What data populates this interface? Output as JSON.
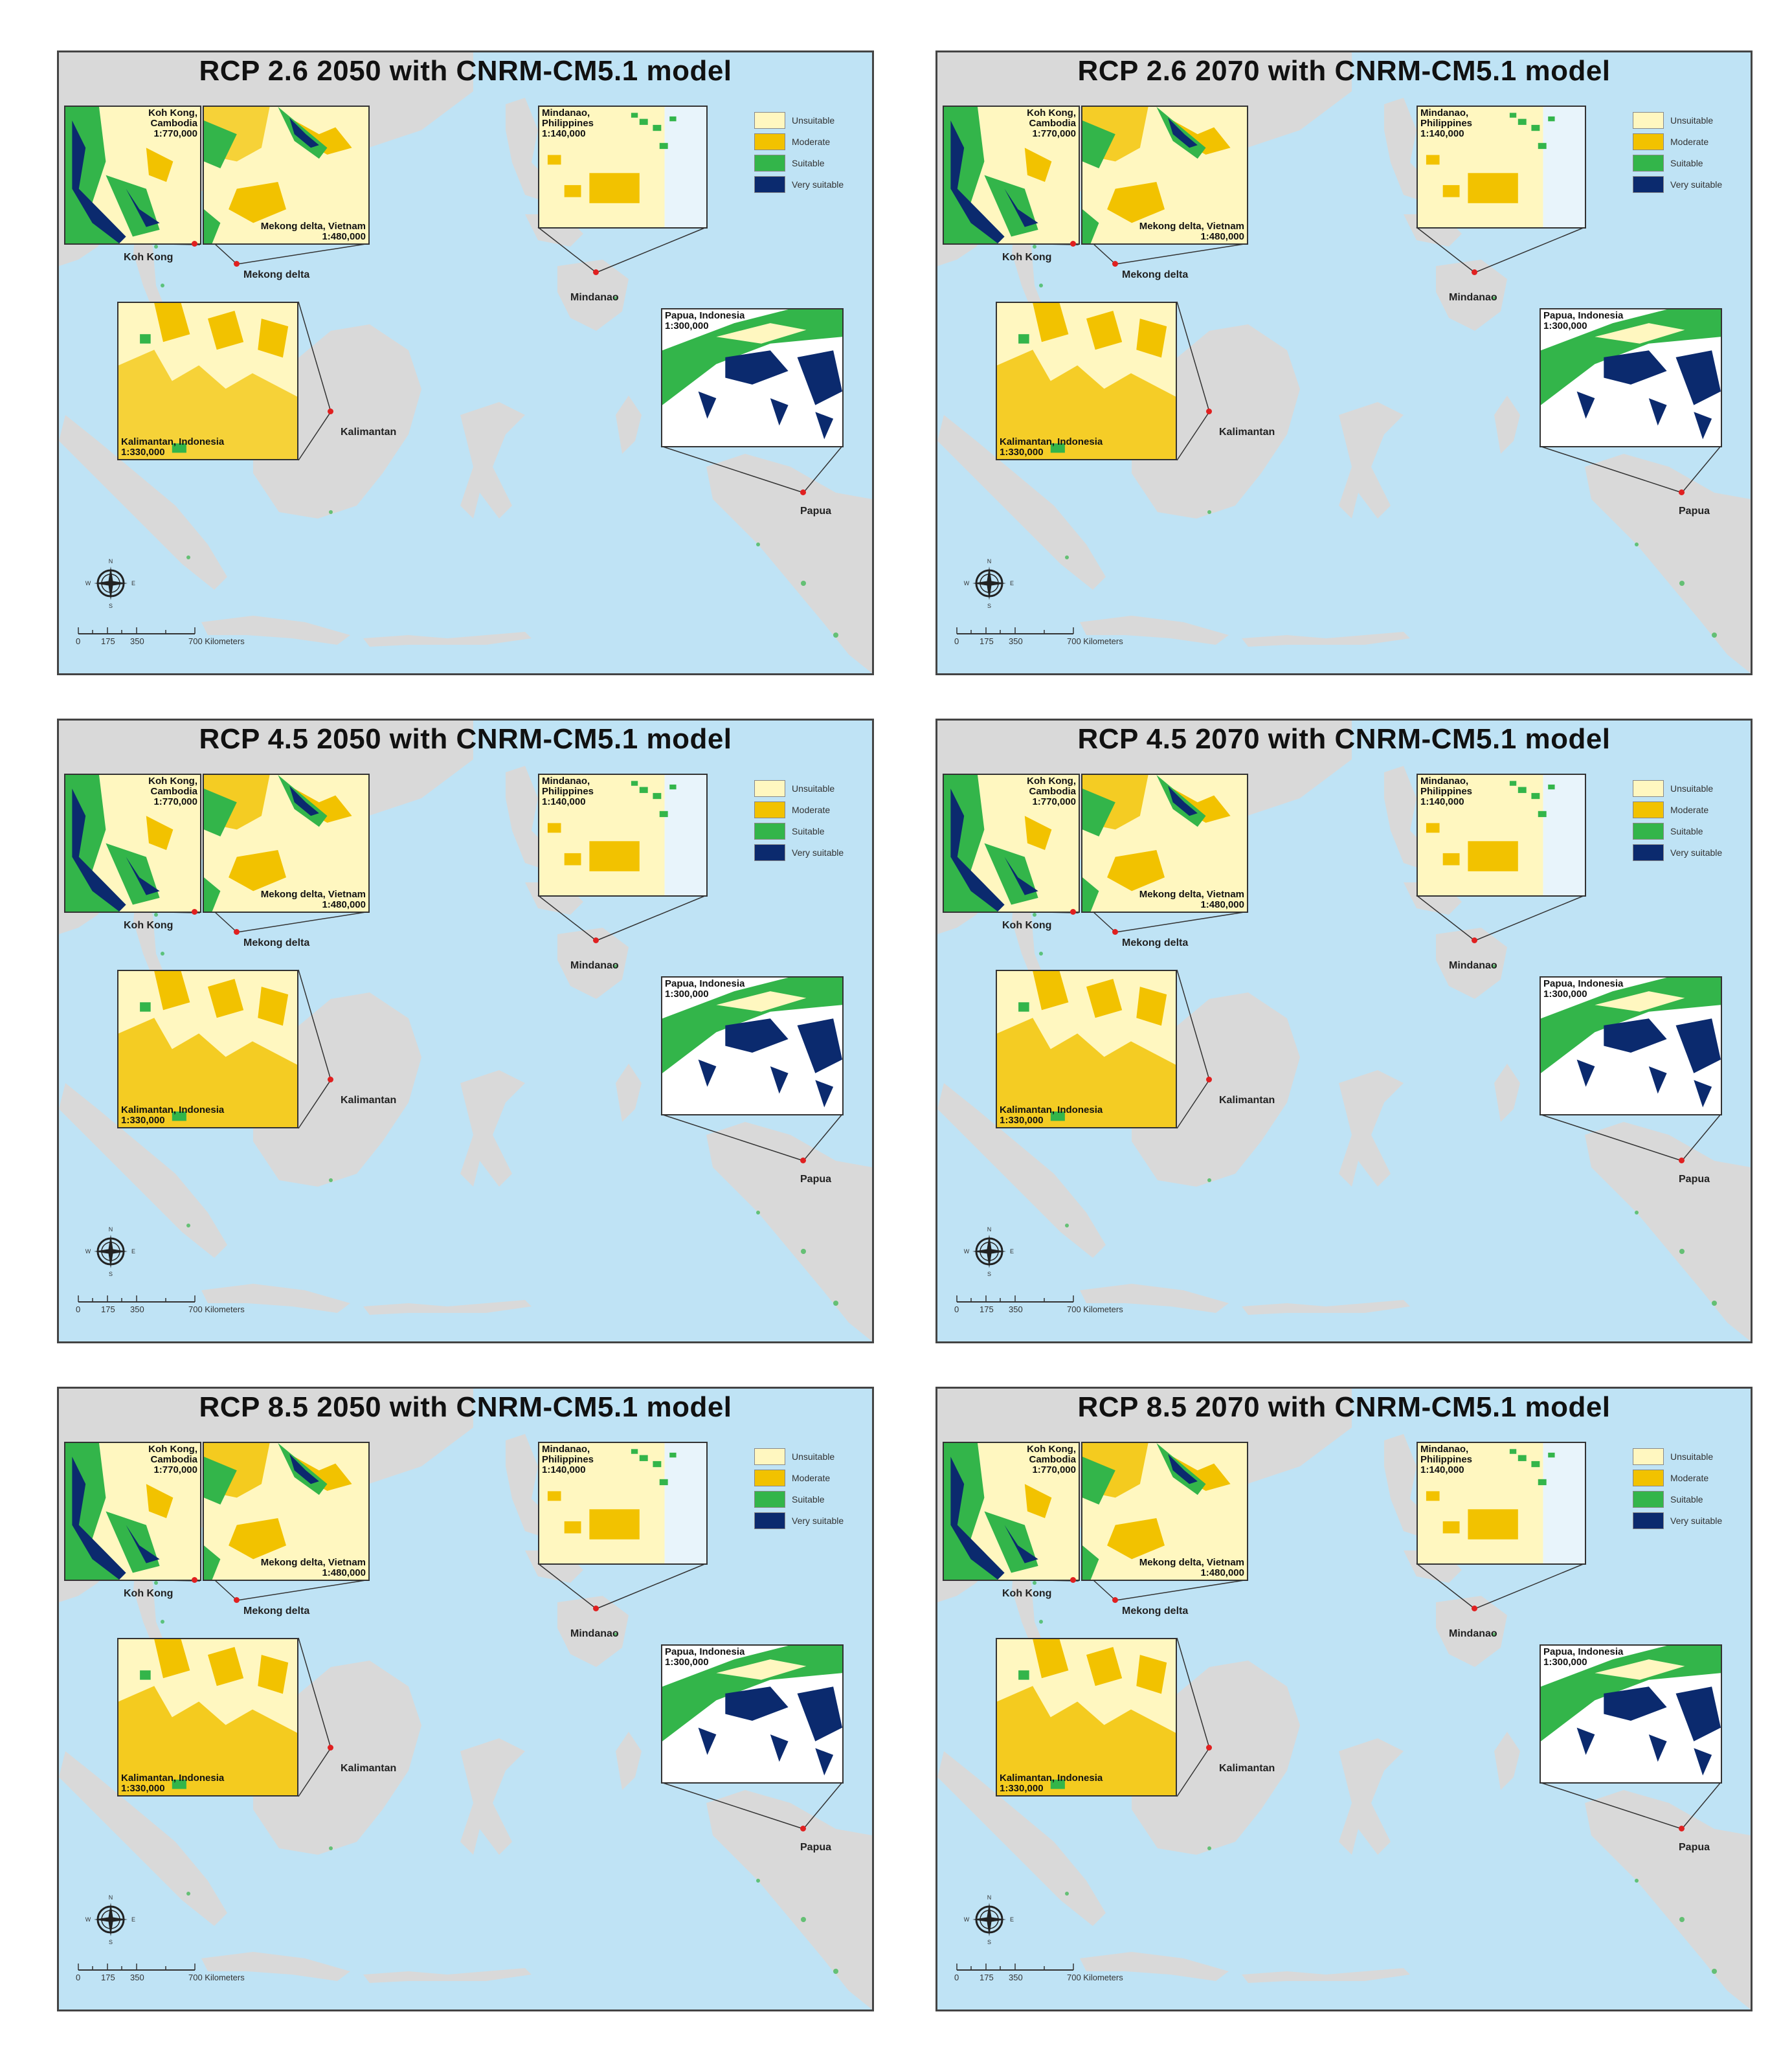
{
  "colors": {
    "sea": "#bfe3f5",
    "land": "#d9d9d9",
    "unsuitable": "#fff7c0",
    "moderate": "#f2c200",
    "suitable": "#33b54a",
    "very_suitable": "#0b2a6e",
    "marker": "#e02020"
  },
  "legend": [
    "Unsuitable",
    "Moderate",
    "Suitable",
    "Very suitable"
  ],
  "insets": {
    "koh_kong": "Koh Kong,\nCambodia\n1:770,000",
    "mekong": "Mekong delta, Vietnam\n1:480,000",
    "mindanao": "Mindanao,\nPhilippines\n1:140,000",
    "kalimantan": "Kalimantan, Indonesia\n1:330,000",
    "papua": "Papua, Indonesia\n1:300,000"
  },
  "places": {
    "koh_kong": "Koh Kong",
    "mekong": "Mekong delta",
    "mindanao": "Mindanao",
    "kalimantan": "Kalimantan",
    "papua": "Papua"
  },
  "scale": {
    "ticks": [
      "0",
      "175",
      "350",
      "700 Kilometers"
    ]
  },
  "compass": [
    "N",
    "E",
    "S",
    "W"
  ],
  "panels": [
    {
      "title": "RCP 2.6 2050 with CNRM-CM5.1 model",
      "moderate_level": 0.35
    },
    {
      "title": "RCP 2.6 2070 with CNRM-CM5.1 model",
      "moderate_level": 0.55
    },
    {
      "title": "RCP 4.5 2050 with CNRM-CM5.1 model",
      "moderate_level": 0.6
    },
    {
      "title": "RCP 4.5 2070 with CNRM-CM5.1 model",
      "moderate_level": 0.6
    },
    {
      "title": "RCP 8.5 2050 with CNRM-CM5.1 model",
      "moderate_level": 0.65
    },
    {
      "title": "RCP 8.5 2070 with CNRM-CM5.1 model",
      "moderate_level": 0.65
    }
  ]
}
